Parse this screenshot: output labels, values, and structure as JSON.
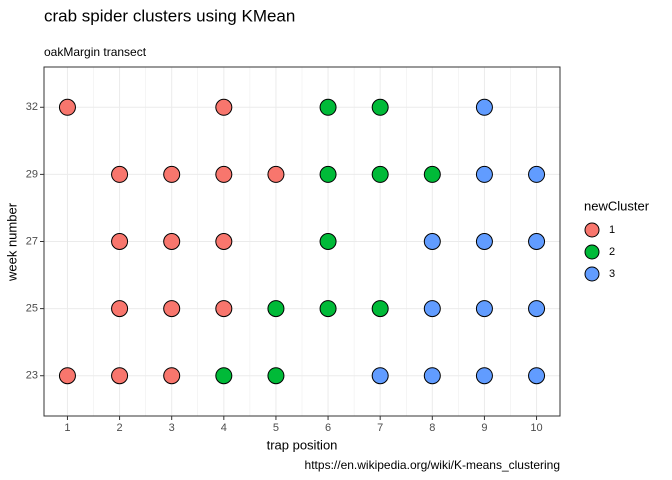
{
  "chart_data": {
    "type": "scatter",
    "title": "crab spider clusters using KMean",
    "subtitle": "oakMargin transect",
    "caption": "https://en.wikipedia.org/wiki/K-means_clustering",
    "x_label": "trap position",
    "y_label": "week number",
    "legend_title": "newCluster",
    "xlim": [
      0.55,
      10.45
    ],
    "xticks": [
      1,
      2,
      3,
      4,
      5,
      6,
      7,
      8,
      9,
      10
    ],
    "x_minor_ticks": [
      1.5,
      2.5,
      3.5,
      4.5,
      5.5,
      6.5,
      7.5,
      8.5,
      9.5
    ],
    "y_categories": [
      23,
      25,
      27,
      29,
      32
    ],
    "grid": true,
    "series": [
      {
        "name": "1",
        "color": "#F8766D",
        "x": [
          1,
          4,
          2,
          3,
          4,
          5,
          2,
          3,
          4,
          2,
          3,
          4,
          1,
          2,
          3
        ],
        "y": [
          32,
          32,
          29,
          29,
          29,
          29,
          27,
          27,
          27,
          25,
          25,
          25,
          23,
          23,
          23
        ]
      },
      {
        "name": "2",
        "color": "#00BA38",
        "x": [
          6,
          7,
          6,
          7,
          8,
          6,
          5,
          6,
          7,
          4,
          5
        ],
        "y": [
          32,
          32,
          29,
          29,
          29,
          27,
          25,
          25,
          25,
          23,
          23
        ]
      },
      {
        "name": "3",
        "color": "#619CFF",
        "x": [
          9,
          9,
          10,
          8,
          9,
          10,
          8,
          9,
          10,
          7,
          8,
          9,
          10
        ],
        "y": [
          32,
          29,
          29,
          27,
          27,
          27,
          25,
          25,
          25,
          23,
          23,
          23,
          23
        ]
      }
    ]
  }
}
